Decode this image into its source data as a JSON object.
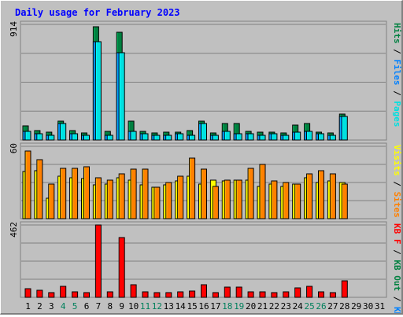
{
  "chart_data": {
    "type": "bar",
    "title": "Daily usage for February 2023",
    "categories": [
      "1",
      "2",
      "3",
      "4",
      "5",
      "6",
      "7",
      "8",
      "9",
      "10",
      "11",
      "12",
      "13",
      "14",
      "15",
      "16",
      "17",
      "18",
      "19",
      "20",
      "21",
      "22",
      "23",
      "24",
      "25",
      "26",
      "27",
      "28",
      "29",
      "30",
      "31"
    ],
    "weekend_days": [
      4,
      5,
      11,
      12,
      18,
      19,
      25,
      26
    ],
    "panels": [
      {
        "id": "hits-panel",
        "max_label": "914",
        "ylim": [
          0,
          914
        ],
        "series": [
          {
            "name": "Hits",
            "color": "#008040",
            "values": [
              111,
              74,
              62,
              152,
              74,
              59,
              895,
              70,
              853,
              152,
              70,
              59,
              62,
              62,
              74,
              152,
              59,
              132,
              132,
              66,
              62,
              62,
              59,
              119,
              132,
              62,
              56,
              207,
              null,
              null,
              null
            ]
          },
          {
            "name": "Files",
            "color": "#0080ff",
            "values": [
              71,
              50,
              40,
              130,
              50,
              40,
              780,
              40,
              690,
              71,
              50,
              40,
              40,
              50,
              40,
              130,
              40,
              71,
              50,
              50,
              40,
              50,
              40,
              60,
              71,
              50,
              40,
              186,
              null,
              null,
              null
            ]
          },
          {
            "name": "Pages",
            "color": "#00e0e0",
            "values": [
              71,
              50,
              40,
              130,
              50,
              40,
              780,
              40,
              690,
              71,
              50,
              40,
              40,
              50,
              40,
              130,
              40,
              71,
              50,
              50,
              40,
              50,
              40,
              60,
              71,
              50,
              40,
              186,
              null,
              null,
              null
            ]
          }
        ],
        "right_labels": [
          {
            "text": "Hits",
            "color": "#008040"
          },
          {
            "text": " / ",
            "color": "#000000"
          },
          {
            "text": "Files",
            "color": "#0080ff"
          },
          {
            "text": " / ",
            "color": "#000000"
          },
          {
            "text": "Pages",
            "color": "#00e0e0"
          }
        ]
      },
      {
        "id": "visits-panel",
        "max_label": "60",
        "ylim": [
          0,
          60
        ],
        "series": [
          {
            "name": "Visits",
            "color": "#ffff00",
            "values": [
              39,
              40,
              17,
              35,
              34,
              33,
              28,
              29,
              34,
              32,
              28,
              26,
              28,
              31,
              35,
              29,
              32,
              31,
              32,
              32,
              27,
              29,
              27,
              29,
              34,
              30,
              31,
              30,
              null,
              null,
              null
            ]
          },
          {
            "name": "Sites",
            "color": "#ff8000",
            "values": [
              56,
              49,
              29,
              42,
              42,
              43,
              34,
              32,
              37,
              41,
              41,
              26,
              30,
              35,
              50,
              41,
              27,
              32,
              32,
              42,
              45,
              31,
              30,
              29,
              37,
              40,
              37,
              29,
              null,
              null,
              null
            ]
          }
        ],
        "right_labels": [
          {
            "text": "Visits",
            "color": "#ffff00"
          },
          {
            "text": " / ",
            "color": "#000000"
          },
          {
            "text": "Sites",
            "color": "#ff8000"
          }
        ]
      },
      {
        "id": "kbytes-panel",
        "max_label": "462",
        "ylim": [
          0,
          462
        ],
        "series": [
          {
            "name": "KB F",
            "color": "#ff0000",
            "values": [
              53,
              44,
              29,
              71,
              33,
              28,
              462,
              33,
              381,
              79,
              33,
              28,
              29,
              33,
              39,
              79,
              30,
              65,
              67,
              33,
              34,
              30,
              33,
              61,
              70,
              33,
              29,
              104,
              null,
              null,
              null
            ]
          }
        ],
        "right_labels": [
          {
            "text": "KB F",
            "color": "#ff0000"
          },
          {
            "text": " / ",
            "color": "#000000"
          },
          {
            "text": "KB Out",
            "color": "#008040"
          },
          {
            "text": " / ",
            "color": "#000000"
          },
          {
            "text": "KB In",
            "color": "#0080ff"
          }
        ]
      }
    ],
    "colors": {
      "title": "#0000ff",
      "weekend_label": "#00805c",
      "weekday_label": "#000000",
      "plot_bg": "#c0c0c0",
      "grid": "#808080"
    }
  }
}
